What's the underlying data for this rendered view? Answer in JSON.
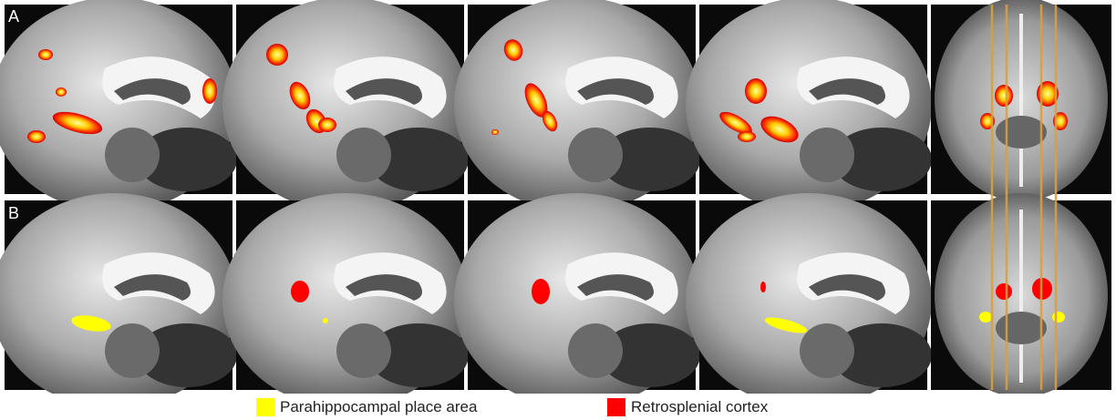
{
  "panels": {
    "a": {
      "label": "A"
    },
    "b": {
      "label": "B"
    }
  },
  "legend": [
    {
      "label": "Parahippocampal place area",
      "color": "#ffff00"
    },
    {
      "label": "Retrosplenial cortex",
      "color": "#ff0000"
    }
  ]
}
